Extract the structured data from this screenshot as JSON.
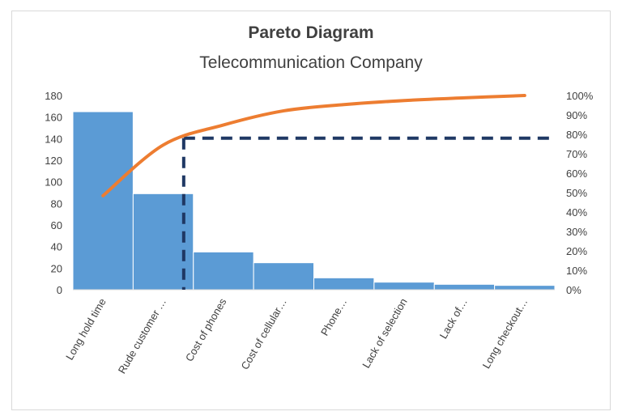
{
  "chart_data": {
    "type": "bar",
    "title": "Pareto Diagram",
    "subtitle": "Telecommunication Company",
    "categories": [
      "Long hold time",
      "Rude customer …",
      "Cost of phones",
      "Cost of cellular…",
      "Phone…",
      "Lack of selection",
      "Lack of…",
      "Long checkout…"
    ],
    "series": [
      {
        "type": "bar",
        "axis": "left",
        "values": [
          165,
          89,
          35,
          25,
          11,
          7,
          5,
          4
        ]
      },
      {
        "type": "line",
        "axis": "right",
        "values": [
          0.484,
          0.745,
          0.848,
          0.921,
          0.953,
          0.974,
          0.988,
          1.0
        ]
      }
    ],
    "threshold": {
      "value": 0.78,
      "crossing_category_index": 1
    },
    "ylim_left": [
      0,
      180
    ],
    "left_ticks": [
      0,
      20,
      40,
      60,
      80,
      100,
      120,
      140,
      160,
      180
    ],
    "ylim_right": [
      0,
      1
    ],
    "right_ticks": [
      "0%",
      "10%",
      "20%",
      "30%",
      "40%",
      "50%",
      "60%",
      "70%",
      "80%",
      "90%",
      "100%"
    ],
    "legend": "none",
    "grid": false,
    "colors": {
      "bar": "#5b9bd5",
      "line": "#ed7d31",
      "threshold": "#1f3864"
    }
  }
}
